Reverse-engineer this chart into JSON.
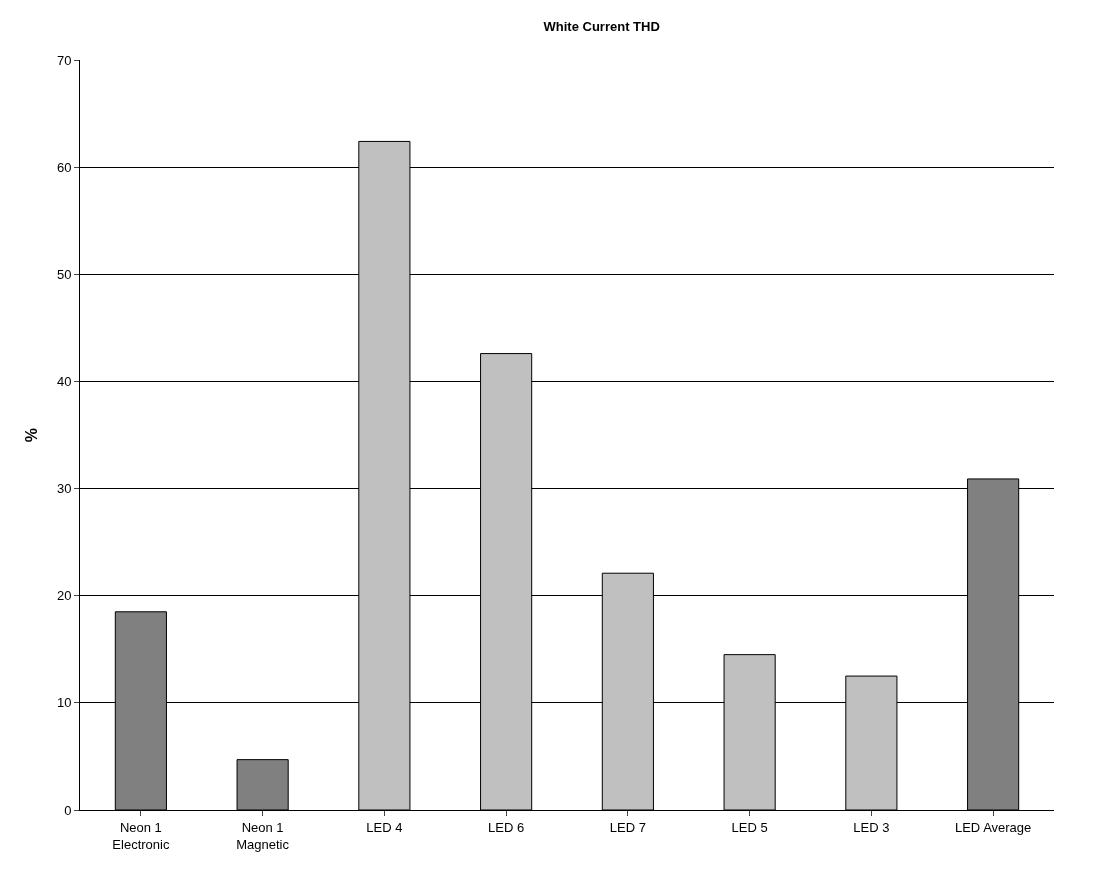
{
  "chart_data": {
    "type": "bar",
    "title": "White Current THD",
    "ylabel": "%",
    "categories": [
      "Neon 1\nElectronic",
      "Neon 1\nMagnetic",
      "LED 4",
      "LED 6",
      "LED 7",
      "LED 5",
      "LED 3",
      "LED Average"
    ],
    "values": [
      18.5,
      4.7,
      62.4,
      42.6,
      22.1,
      14.5,
      12.5,
      30.9
    ],
    "colors": [
      "#808080",
      "#808080",
      "#c0c0c0",
      "#c0c0c0",
      "#c0c0c0",
      "#c0c0c0",
      "#c0c0c0",
      "#808080"
    ],
    "ylim": [
      0,
      70
    ],
    "yticks": [
      0,
      10,
      20,
      30,
      40,
      50,
      60,
      70
    ],
    "grid": "y",
    "legend": false
  }
}
